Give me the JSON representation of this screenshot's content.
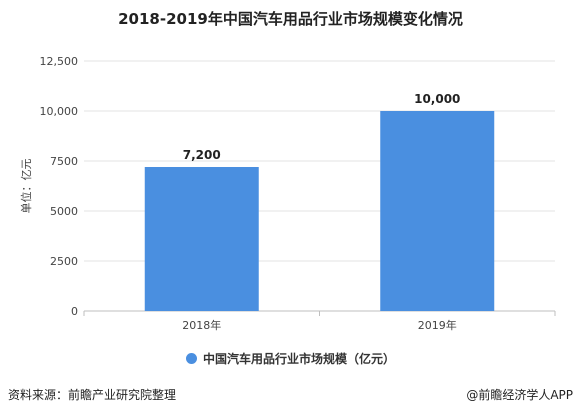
{
  "chart_data": {
    "type": "bar",
    "title": "2018-2019年中国汽车用品行业市场规模变化情况",
    "ylabel": "单位：亿元",
    "xlabel": "",
    "categories": [
      "2018年",
      "2019年"
    ],
    "series": [
      {
        "name": "中国汽车用品行业市场规模（亿元）",
        "values": [
          7200,
          10000
        ],
        "color": "#4a8fe0"
      }
    ],
    "data_labels": [
      "7,200",
      "10,000"
    ],
    "ylim": [
      0,
      12500
    ],
    "yticks": [
      0,
      2500,
      5000,
      7500,
      10000,
      12500
    ],
    "ytick_labels": [
      "0",
      "2500",
      "5000",
      "7500",
      "10,000",
      "12,500"
    ],
    "grid": true,
    "legend_position": "bottom"
  },
  "footer": {
    "source": "资料来源：前瞻产业研究院整理",
    "brand": "@前瞻经济学人APP"
  }
}
